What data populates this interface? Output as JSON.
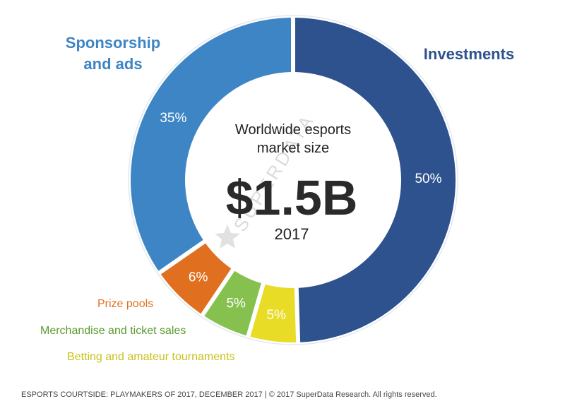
{
  "chart_data": {
    "type": "pie",
    "donut": true,
    "center_text": {
      "line1": "Worldwide esports",
      "line2": "market size",
      "value": "$1.5B",
      "year": "2017"
    },
    "slices": [
      {
        "name": "Investments",
        "value": 50,
        "label": "50%",
        "color": "#2e528e"
      },
      {
        "name": "Betting and amateur tournaments",
        "value": 5,
        "label": "5%",
        "color": "#e8dc27"
      },
      {
        "name": "Merchandise and ticket sales",
        "value": 5,
        "label": "5%",
        "color": "#86c150"
      },
      {
        "name": "Prize pools",
        "value": 6,
        "label": "6%",
        "color": "#e07020"
      },
      {
        "name": "Sponsorship and ads",
        "name_lines": [
          "Sponsorship",
          "and ads"
        ],
        "value": 35,
        "label": "35%",
        "color": "#3d85c4"
      }
    ],
    "legend_colors": {
      "Investments": "#2e528e",
      "Sponsorship and ads": "#3d85c4",
      "Prize pools": "#e07020",
      "Merchandise and ticket sales": "#5a9a2c",
      "Betting and amateur tournaments": "#c9c21a"
    }
  },
  "watermark": "SUPERDATA",
  "footer": "ESPORTS COURTSIDE: PLAYMAKERS OF 2017, DECEMBER 2017  |  © 2017 SuperData Research. All rights reserved."
}
